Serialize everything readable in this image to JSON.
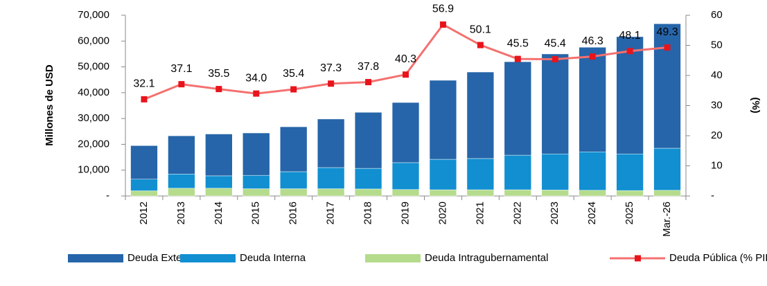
{
  "chart_data": {
    "type": "bar-line",
    "categories": [
      "2012",
      "2013",
      "2014",
      "2015",
      "2016",
      "2017",
      "2018",
      "2019",
      "2020",
      "2021",
      "2022",
      "2023",
      "2024",
      "2025",
      "Mar.-26"
    ],
    "y_label": "Millones de USD",
    "y2_label": "(%)",
    "ylim": [
      0,
      70000
    ],
    "yticks": [
      {
        "value": 0,
        "label": "-"
      },
      {
        "value": 10000,
        "label": "10,000"
      },
      {
        "value": 20000,
        "label": "20,000"
      },
      {
        "value": 30000,
        "label": "30,000"
      },
      {
        "value": 40000,
        "label": "40,000"
      },
      {
        "value": 50000,
        "label": "50,000"
      },
      {
        "value": 60000,
        "label": "60,000"
      },
      {
        "value": 70000,
        "label": "70,000"
      }
    ],
    "y2lim": [
      0,
      60
    ],
    "y2ticks": [
      {
        "value": 0,
        "label": "-"
      },
      10,
      20,
      30,
      40,
      50,
      60
    ],
    "series": [
      {
        "name": "Deuda Intragubernamental",
        "color": "#b5dc8d",
        "stack": true,
        "values": [
          2000,
          3000,
          3000,
          2800,
          2800,
          2800,
          2700,
          2500,
          2400,
          2400,
          2400,
          2300,
          2200,
          2100,
          2200
        ]
      },
      {
        "name": "Deuda Interna",
        "color": "#118fd1",
        "stack": true,
        "values": [
          4500,
          5500,
          4800,
          5200,
          6600,
          8200,
          8000,
          10400,
          11800,
          12100,
          13400,
          14000,
          14900,
          14200,
          16300
        ]
      },
      {
        "name": "Deuda Externa",
        "color": "#2665a9",
        "stack": true,
        "values": [
          13000,
          14800,
          16200,
          16400,
          17400,
          18800,
          21700,
          23300,
          30600,
          33500,
          36200,
          38700,
          40500,
          45400,
          48200
        ]
      },
      {
        "name": "Deuda Pública (% PIB)",
        "color": "#f4706f",
        "marker_color": "#e8141c",
        "axis": "y2",
        "values": [
          32.1,
          37.1,
          35.5,
          34.0,
          35.4,
          37.3,
          37.8,
          40.3,
          56.9,
          50.1,
          45.5,
          45.4,
          46.3,
          48.1,
          49.3
        ],
        "value_labels": [
          "32.1",
          "37.1",
          "35.5",
          "34.0",
          "35.4",
          "37.3",
          "37.8",
          "40.3",
          "56.9",
          "50.1",
          "45.5",
          "45.4",
          "46.3",
          "48.1",
          "49.3"
        ]
      }
    ],
    "legend_order": [
      2,
      1,
      0,
      3
    ]
  }
}
